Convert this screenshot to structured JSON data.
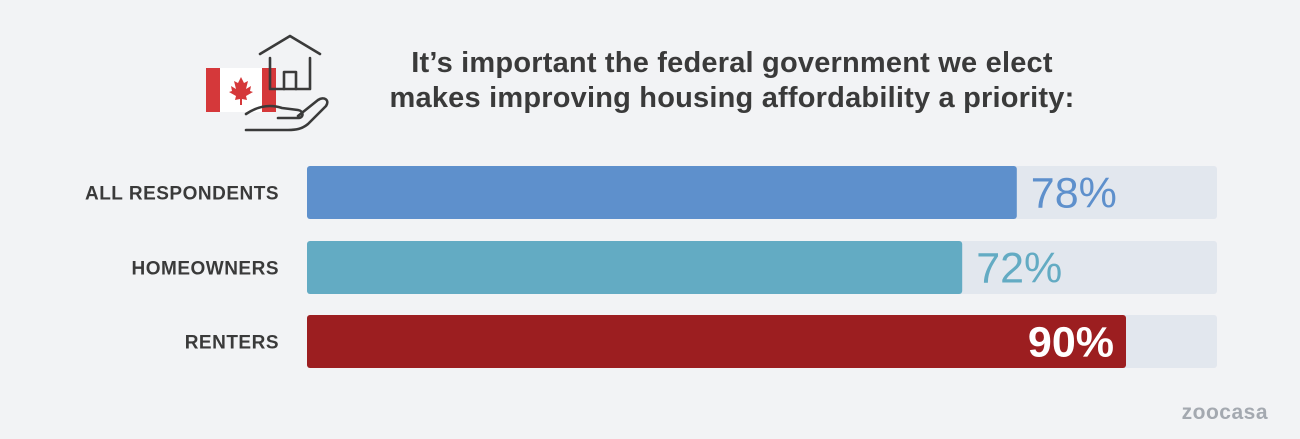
{
  "colors": {
    "background": "#f2f3f5",
    "track": "#e2e7ee",
    "all_respondents": "#5e90cc",
    "homeowners": "#63abc3",
    "renters": "#9c1e20",
    "title": "#3a3a3a",
    "brand": "#a4a9b0",
    "flag_red": "#d5383a",
    "icon_stroke": "#3a3a3a"
  },
  "icons": {
    "flag": "canada-flag-icon",
    "house": "house-icon",
    "hand": "hand-icon"
  },
  "title_lines": [
    "It’s important the federal government we elect",
    "makes improving housing affordability a priority:"
  ],
  "brand": "zoocasa",
  "chart_data": {
    "type": "bar",
    "orientation": "horizontal",
    "categories": [
      "ALL RESPONDENTS",
      "HOMEOWNERS",
      "RENTERS"
    ],
    "values": [
      78,
      72,
      90
    ],
    "value_labels": [
      "78%",
      "72%",
      "90%"
    ],
    "xlim": [
      0,
      100
    ],
    "title": "It’s important the federal government we elect makes improving housing affordability a priority:",
    "xlabel": "",
    "ylabel": "",
    "grid": false,
    "legend": "none"
  }
}
